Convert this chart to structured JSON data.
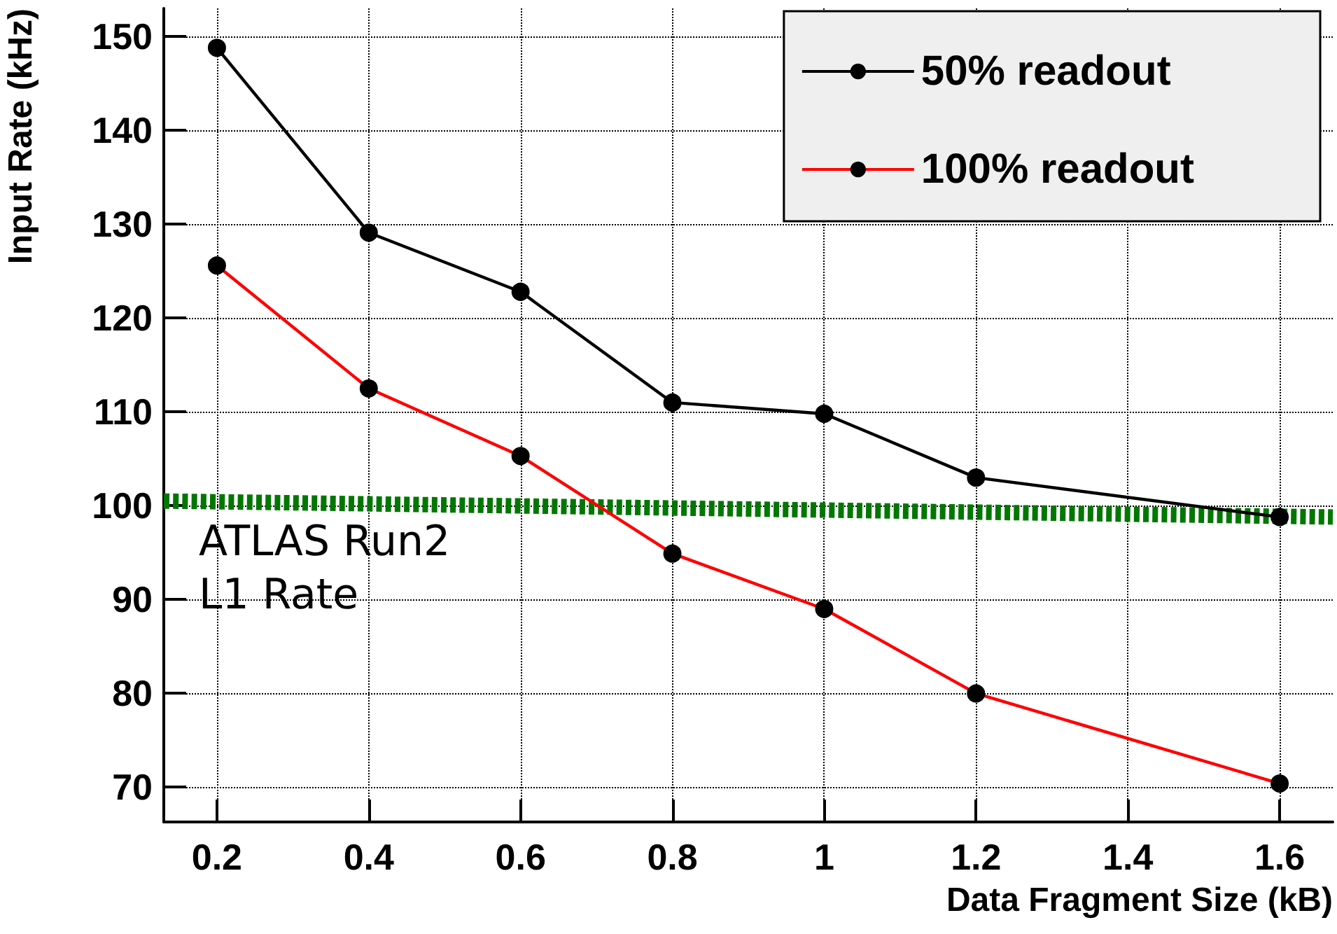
{
  "chart_data": {
    "type": "line",
    "xlabel": "Data Fragment Size (kB)",
    "ylabel": "Input Rate (kHz)",
    "x": [
      0.2,
      0.4,
      0.6,
      0.8,
      1.0,
      1.2,
      1.6
    ],
    "series": [
      {
        "name": "50% readout",
        "color": "#000000",
        "values": [
          148.8,
          129.1,
          122.8,
          111.0,
          109.8,
          103.0,
          98.8
        ]
      },
      {
        "name": "100% readout",
        "color": "#ff0000",
        "values": [
          125.6,
          112.5,
          105.3,
          94.9,
          89.0,
          80.0,
          70.4
        ]
      },
      {
        "name": "ATLAS Run2\nL1 Rate",
        "color": "#007700",
        "x": [
          0.13,
          1.67
        ],
        "values": [
          100.5,
          98.8
        ],
        "line_style": "dashed",
        "marker": "none"
      }
    ],
    "xlim": [
      0.13,
      1.67
    ],
    "xticks": [
      0.2,
      0.4,
      0.6,
      0.8,
      1,
      1.2,
      1.4,
      1.6
    ],
    "ylim": [
      66.3,
      153
    ],
    "yticks": [
      70,
      80,
      90,
      100,
      110,
      120,
      130,
      140,
      150
    ],
    "grid": true,
    "legend": "top right",
    "marker": "circle",
    "line_style": "solid"
  }
}
